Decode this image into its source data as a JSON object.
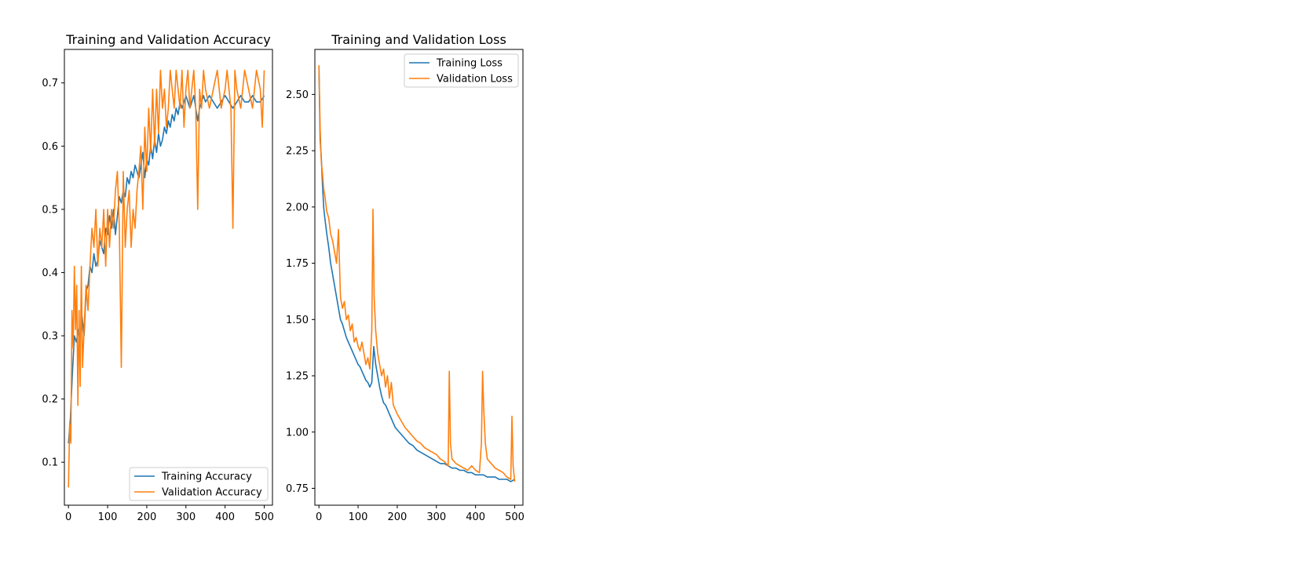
{
  "colors": {
    "training": "#1f77b4",
    "validation": "#ff7f0e"
  },
  "chart_data": [
    {
      "type": "line",
      "title": "Training and Validation Accuracy",
      "xlabel": "",
      "ylabel": "",
      "xlim": [
        -10.4,
        521
      ],
      "ylim": [
        0.032,
        0.753
      ],
      "xticks": [
        0,
        100,
        200,
        300,
        400,
        500
      ],
      "yticks": [
        0.1,
        0.2,
        0.3,
        0.4,
        0.5,
        0.6,
        0.7
      ],
      "grid": false,
      "legend_position": "lower right",
      "series": [
        {
          "name": "Training Accuracy",
          "color_key": "training",
          "x": [
            0,
            5,
            10,
            15,
            20,
            25,
            30,
            35,
            40,
            45,
            50,
            55,
            60,
            65,
            70,
            75,
            80,
            85,
            90,
            95,
            100,
            105,
            110,
            115,
            120,
            125,
            130,
            135,
            140,
            145,
            150,
            155,
            160,
            165,
            170,
            175,
            180,
            185,
            190,
            195,
            200,
            205,
            210,
            215,
            220,
            225,
            230,
            235,
            240,
            245,
            250,
            255,
            260,
            265,
            270,
            275,
            280,
            285,
            290,
            295,
            300,
            305,
            310,
            315,
            320,
            325,
            330,
            335,
            340,
            345,
            350,
            360,
            370,
            380,
            390,
            400,
            410,
            420,
            430,
            440,
            450,
            460,
            470,
            480,
            490,
            500
          ],
          "y": [
            0.13,
            0.17,
            0.24,
            0.3,
            0.29,
            0.31,
            0.3,
            0.33,
            0.3,
            0.37,
            0.38,
            0.41,
            0.4,
            0.43,
            0.41,
            0.42,
            0.45,
            0.44,
            0.43,
            0.47,
            0.46,
            0.49,
            0.47,
            0.5,
            0.46,
            0.49,
            0.52,
            0.51,
            0.53,
            0.52,
            0.55,
            0.54,
            0.56,
            0.55,
            0.57,
            0.56,
            0.55,
            0.57,
            0.59,
            0.55,
            0.58,
            0.57,
            0.6,
            0.58,
            0.61,
            0.59,
            0.62,
            0.6,
            0.61,
            0.63,
            0.62,
            0.64,
            0.63,
            0.65,
            0.64,
            0.66,
            0.65,
            0.67,
            0.66,
            0.67,
            0.68,
            0.67,
            0.66,
            0.67,
            0.68,
            0.66,
            0.64,
            0.66,
            0.67,
            0.68,
            0.67,
            0.68,
            0.67,
            0.66,
            0.67,
            0.68,
            0.67,
            0.66,
            0.67,
            0.68,
            0.67,
            0.67,
            0.68,
            0.67,
            0.67,
            0.68
          ]
        },
        {
          "name": "Validation Accuracy",
          "color_key": "validation",
          "x": [
            0,
            3,
            6,
            9,
            12,
            15,
            18,
            21,
            24,
            27,
            30,
            33,
            36,
            40,
            45,
            50,
            55,
            60,
            65,
            70,
            75,
            80,
            85,
            90,
            95,
            100,
            105,
            110,
            115,
            120,
            125,
            130,
            135,
            140,
            145,
            150,
            155,
            160,
            165,
            170,
            175,
            180,
            185,
            190,
            195,
            200,
            205,
            210,
            215,
            220,
            225,
            230,
            235,
            240,
            245,
            250,
            255,
            260,
            265,
            270,
            275,
            280,
            285,
            290,
            295,
            300,
            305,
            310,
            315,
            320,
            325,
            330,
            335,
            340,
            345,
            350,
            360,
            370,
            380,
            390,
            400,
            405,
            410,
            415,
            420,
            425,
            430,
            440,
            450,
            460,
            470,
            480,
            490,
            495,
            500
          ],
          "y": [
            0.06,
            0.16,
            0.13,
            0.34,
            0.28,
            0.41,
            0.31,
            0.38,
            0.19,
            0.34,
            0.22,
            0.41,
            0.25,
            0.31,
            0.38,
            0.34,
            0.41,
            0.47,
            0.44,
            0.5,
            0.41,
            0.47,
            0.44,
            0.5,
            0.41,
            0.5,
            0.44,
            0.5,
            0.47,
            0.53,
            0.56,
            0.47,
            0.25,
            0.56,
            0.44,
            0.5,
            0.53,
            0.44,
            0.5,
            0.47,
            0.53,
            0.56,
            0.6,
            0.5,
            0.63,
            0.56,
            0.66,
            0.59,
            0.69,
            0.6,
            0.69,
            0.62,
            0.72,
            0.66,
            0.69,
            0.63,
            0.66,
            0.72,
            0.69,
            0.66,
            0.72,
            0.69,
            0.66,
            0.72,
            0.63,
            0.69,
            0.72,
            0.66,
            0.69,
            0.72,
            0.66,
            0.5,
            0.69,
            0.66,
            0.72,
            0.69,
            0.66,
            0.69,
            0.72,
            0.66,
            0.69,
            0.72,
            0.69,
            0.66,
            0.47,
            0.72,
            0.69,
            0.66,
            0.72,
            0.69,
            0.66,
            0.72,
            0.69,
            0.63,
            0.72
          ]
        }
      ]
    },
    {
      "type": "line",
      "title": "Training and Validation Loss",
      "xlabel": "",
      "ylabel": "",
      "xlim": [
        -10.4,
        521
      ],
      "ylim": [
        0.675,
        2.7
      ],
      "xticks": [
        0,
        100,
        200,
        300,
        400,
        500
      ],
      "yticks": [
        0.75,
        1.0,
        1.25,
        1.5,
        1.75,
        2.0,
        2.25,
        2.5
      ],
      "grid": false,
      "legend_position": "upper right",
      "series": [
        {
          "name": "Training Loss",
          "color_key": "training",
          "x": [
            0,
            3,
            6,
            9,
            12,
            15,
            20,
            25,
            30,
            35,
            40,
            45,
            50,
            55,
            60,
            65,
            70,
            75,
            80,
            85,
            90,
            95,
            100,
            105,
            110,
            115,
            120,
            125,
            130,
            135,
            140,
            145,
            150,
            155,
            160,
            165,
            170,
            175,
            180,
            185,
            190,
            195,
            200,
            210,
            220,
            230,
            240,
            250,
            260,
            270,
            280,
            290,
            300,
            310,
            320,
            330,
            340,
            350,
            360,
            370,
            380,
            390,
            400,
            410,
            420,
            430,
            440,
            450,
            460,
            470,
            480,
            490,
            500
          ],
          "y": [
            2.62,
            2.3,
            2.22,
            2.1,
            2.0,
            1.95,
            1.88,
            1.82,
            1.75,
            1.7,
            1.65,
            1.6,
            1.55,
            1.5,
            1.48,
            1.45,
            1.42,
            1.4,
            1.38,
            1.36,
            1.34,
            1.32,
            1.3,
            1.29,
            1.27,
            1.25,
            1.23,
            1.22,
            1.2,
            1.22,
            1.38,
            1.3,
            1.25,
            1.2,
            1.16,
            1.13,
            1.12,
            1.1,
            1.08,
            1.06,
            1.04,
            1.02,
            1.01,
            0.99,
            0.97,
            0.95,
            0.94,
            0.92,
            0.91,
            0.9,
            0.89,
            0.88,
            0.87,
            0.86,
            0.86,
            0.85,
            0.84,
            0.84,
            0.83,
            0.83,
            0.82,
            0.82,
            0.81,
            0.81,
            0.81,
            0.8,
            0.8,
            0.8,
            0.79,
            0.79,
            0.79,
            0.78,
            0.79
          ]
        },
        {
          "name": "Validation Loss",
          "color_key": "validation",
          "x": [
            0,
            3,
            6,
            9,
            12,
            15,
            20,
            25,
            30,
            35,
            40,
            45,
            50,
            55,
            60,
            65,
            70,
            75,
            80,
            85,
            90,
            95,
            100,
            105,
            110,
            115,
            120,
            125,
            130,
            135,
            138,
            141,
            145,
            150,
            155,
            160,
            165,
            170,
            175,
            180,
            185,
            190,
            195,
            200,
            210,
            220,
            230,
            240,
            250,
            260,
            270,
            280,
            290,
            300,
            310,
            320,
            330,
            333,
            336,
            340,
            350,
            360,
            370,
            380,
            390,
            400,
            410,
            415,
            418,
            421,
            425,
            430,
            440,
            450,
            460,
            470,
            480,
            490,
            493,
            496,
            500
          ],
          "y": [
            2.63,
            2.35,
            2.2,
            2.15,
            2.08,
            2.05,
            1.98,
            1.95,
            1.88,
            1.85,
            1.8,
            1.75,
            1.9,
            1.6,
            1.55,
            1.58,
            1.5,
            1.52,
            1.45,
            1.48,
            1.4,
            1.42,
            1.38,
            1.36,
            1.4,
            1.35,
            1.3,
            1.33,
            1.28,
            1.45,
            1.99,
            1.6,
            1.45,
            1.35,
            1.3,
            1.25,
            1.28,
            1.2,
            1.25,
            1.15,
            1.22,
            1.12,
            1.1,
            1.08,
            1.05,
            1.02,
            1.0,
            0.98,
            0.96,
            0.95,
            0.93,
            0.92,
            0.91,
            0.9,
            0.88,
            0.87,
            0.85,
            1.27,
            0.95,
            0.88,
            0.86,
            0.85,
            0.84,
            0.83,
            0.85,
            0.83,
            0.82,
            0.95,
            1.27,
            1.1,
            0.95,
            0.88,
            0.86,
            0.84,
            0.83,
            0.82,
            0.8,
            0.79,
            1.07,
            0.85,
            0.78
          ]
        }
      ]
    }
  ]
}
